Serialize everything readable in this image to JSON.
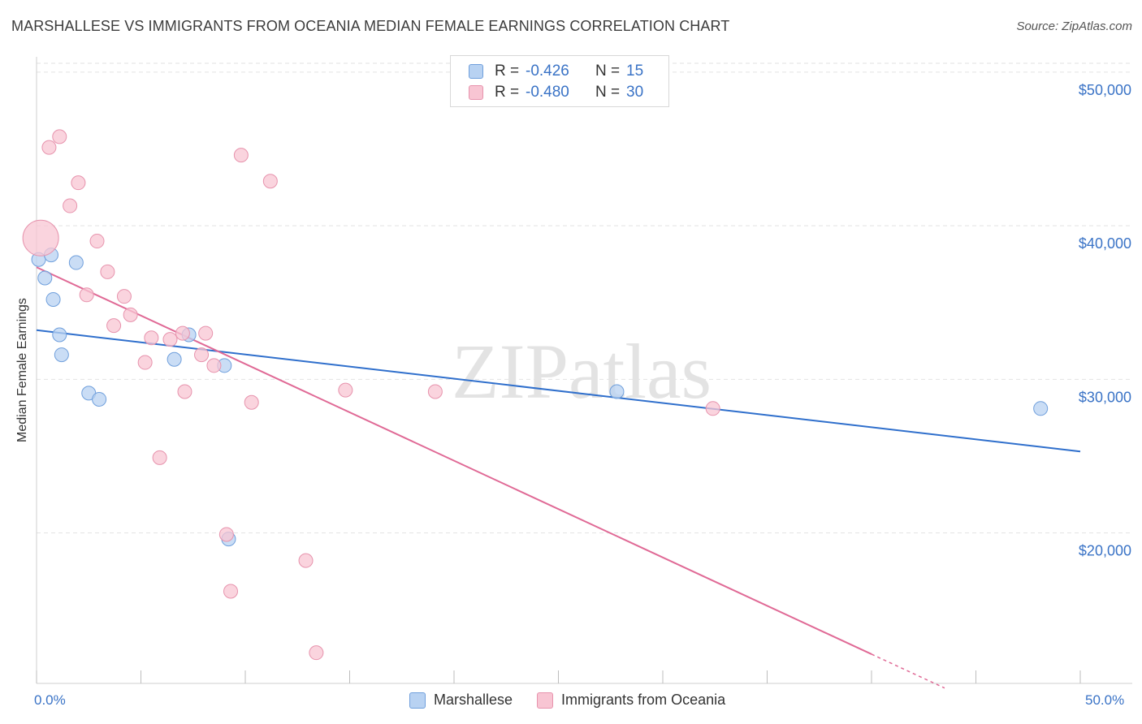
{
  "title": "MARSHALLESE VS IMMIGRANTS FROM OCEANIA MEDIAN FEMALE EARNINGS CORRELATION CHART",
  "source": "Source: ZipAtlas.com",
  "watermark": "ZIPatlas",
  "legend_top": {
    "rows": [
      {
        "r_label": "R =",
        "r_value": "-0.426",
        "n_label": "N =",
        "n_value": "15"
      },
      {
        "r_label": "R =",
        "r_value": "-0.480",
        "n_label": "N =",
        "n_value": "30"
      }
    ]
  },
  "legend_bottom": [
    "Marshallese",
    "Immigrants from Oceania"
  ],
  "colors": {
    "blue_fill": "#b8d2f2",
    "blue_stroke": "#6f9fdc",
    "blue_line": "#2f6fcc",
    "pink_fill": "#f8c5d3",
    "pink_stroke": "#e793ad",
    "pink_line": "#e06a96",
    "axis_text": "#3a73c6",
    "grid": "#e2e2e2"
  },
  "chart_data": {
    "type": "scatter",
    "title": "MARSHALLESE VS IMMIGRANTS FROM OCEANIA MEDIAN FEMALE EARNINGS CORRELATION CHART",
    "xlabel": "",
    "ylabel": "Median Female Earnings",
    "xlim": [
      0,
      50
    ],
    "ylim": [
      10200,
      51000
    ],
    "x_tick_labels": [
      "0.0%",
      "50.0%"
    ],
    "y_ticks": [
      20000,
      30000,
      40000,
      50000
    ],
    "y_tick_labels": [
      "$20,000",
      "$30,000",
      "$40,000",
      "$50,000"
    ],
    "grid": true,
    "series": [
      {
        "name": "Marshallese",
        "r": -0.426,
        "n": 15,
        "points": [
          [
            0.1,
            37800
          ],
          [
            0.4,
            36600
          ],
          [
            0.7,
            38100
          ],
          [
            0.8,
            35200
          ],
          [
            1.1,
            32900
          ],
          [
            1.2,
            31600
          ],
          [
            1.9,
            37600
          ],
          [
            2.5,
            29100
          ],
          [
            3.0,
            28700
          ],
          [
            6.6,
            31300
          ],
          [
            7.3,
            32900
          ],
          [
            9.0,
            30900
          ],
          [
            9.2,
            19600
          ],
          [
            27.8,
            29200
          ],
          [
            48.1,
            28100
          ]
        ],
        "trend": {
          "x": [
            0,
            50
          ],
          "y": [
            33200,
            25300
          ],
          "dashed_from": null
        }
      },
      {
        "name": "Immigrants from Oceania",
        "r": -0.48,
        "n": 30,
        "points": [
          [
            0.2,
            39200
          ],
          [
            0.6,
            45100
          ],
          [
            1.1,
            45800
          ],
          [
            1.6,
            41300
          ],
          [
            2.0,
            42800
          ],
          [
            2.4,
            35500
          ],
          [
            2.9,
            39000
          ],
          [
            3.4,
            37000
          ],
          [
            3.7,
            33500
          ],
          [
            4.2,
            35400
          ],
          [
            4.5,
            34200
          ],
          [
            5.2,
            31100
          ],
          [
            5.5,
            32700
          ],
          [
            5.9,
            24900
          ],
          [
            6.4,
            32600
          ],
          [
            7.0,
            33000
          ],
          [
            7.1,
            29200
          ],
          [
            7.9,
            31600
          ],
          [
            8.1,
            33000
          ],
          [
            8.5,
            30900
          ],
          [
            9.1,
            19900
          ],
          [
            9.3,
            16200
          ],
          [
            9.8,
            44600
          ],
          [
            10.3,
            28500
          ],
          [
            11.2,
            42900
          ],
          [
            12.9,
            18200
          ],
          [
            13.4,
            12200
          ],
          [
            14.8,
            29300
          ],
          [
            19.1,
            29200
          ],
          [
            32.4,
            28100
          ]
        ],
        "trend": {
          "x": [
            0,
            43.5
          ],
          "y": [
            37300,
            9900
          ],
          "dashed_from": 40.0
        }
      }
    ]
  }
}
